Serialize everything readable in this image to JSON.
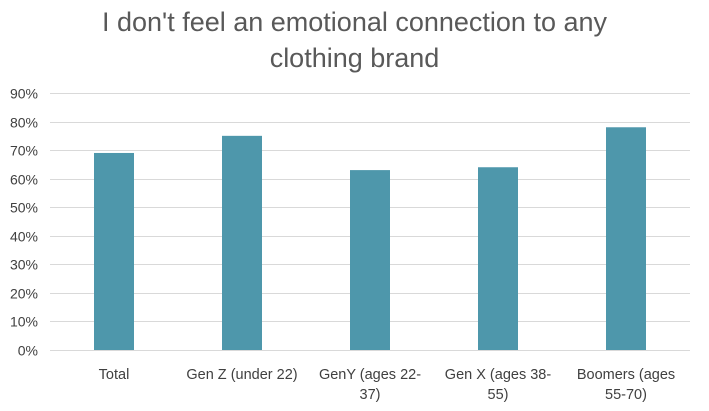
{
  "chart_data": {
    "type": "bar",
    "title_lines": [
      "I don't feel an emotional connection to any",
      "clothing brand"
    ],
    "categories": [
      "Total",
      "Gen Z (under 22)",
      "GenY (ages 22-37)",
      "Gen X (ages 38-55)",
      "Boomers (ages 55-70)"
    ],
    "category_label_lines": [
      [
        "Total"
      ],
      [
        "Gen Z (under 22)"
      ],
      [
        "GenY (ages 22-",
        "37)"
      ],
      [
        "Gen X (ages 38-",
        "55)"
      ],
      [
        "Boomers (ages",
        "55-70)"
      ]
    ],
    "values": [
      69,
      75,
      63,
      64,
      78
    ],
    "value_format": "percent",
    "ylim": [
      0,
      90
    ],
    "ytick_step": 10,
    "ytick_labels": [
      "0%",
      "10%",
      "20%",
      "30%",
      "40%",
      "50%",
      "60%",
      "70%",
      "80%",
      "90%"
    ],
    "xlabel": "",
    "ylabel": "",
    "grid": true,
    "legend": "none",
    "bar_color": "#4E97AB",
    "grid_color": "#D9D9D9",
    "text_color": "#404040",
    "title_color": "#595959"
  }
}
